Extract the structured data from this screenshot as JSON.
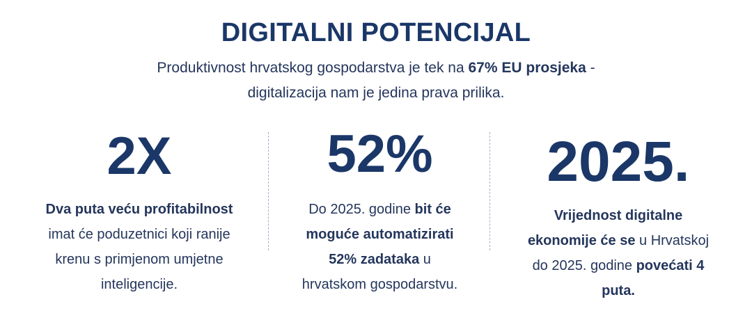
{
  "header": {
    "title": "DIGITALNI POTENCIJAL",
    "subtitle": {
      "part1": "Produktivnost hrvatskog gospodarstva je tek na ",
      "bold": "67% EU prosjeka",
      "part2": " -",
      "line2": "digitalizacija nam je jedina prava prilika."
    }
  },
  "stats": [
    {
      "value": "2X",
      "lines": [
        {
          "bold": "Dva puta veću profitabilnost"
        },
        {
          "text": "imat će poduzetnici koji ranije"
        },
        {
          "text": "krenu s primjenom umjetne"
        },
        {
          "text": "inteligencije."
        }
      ]
    },
    {
      "value": "52%",
      "lines": [
        {
          "text": "Do 2025. godine ",
          "bold": "bit će"
        },
        {
          "bold": "moguće automatizirati"
        },
        {
          "bold": "52% zadataka",
          "text": " u"
        },
        {
          "text": "hrvatskom gospodarstvu."
        }
      ]
    },
    {
      "value": "2025.",
      "lines": [
        {
          "bold": "Vrijednost digitalne"
        },
        {
          "bold": "ekonomije će se",
          "text": " u Hrvatskoj"
        },
        {
          "text": "do 2025. godine ",
          "bold": "povećati 4"
        },
        {
          "bold": "puta."
        }
      ]
    }
  ]
}
